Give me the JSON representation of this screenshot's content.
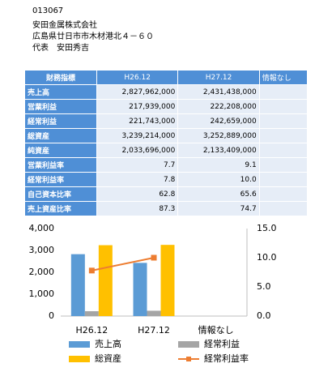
{
  "header": {
    "code": "013067",
    "company": "安田金属株式会社",
    "address": "広島県廿日市市木材港北４－６０",
    "representative": "代表　安田秀吉"
  },
  "table": {
    "columns": [
      "財務指標",
      "H26.12",
      "H27.12",
      "情報なし"
    ],
    "rows": [
      [
        "売上高",
        "2,827,962,000",
        "2,431,438,000",
        ""
      ],
      [
        "営業利益",
        "217,939,000",
        "222,208,000",
        ""
      ],
      [
        "経常利益",
        "221,743,000",
        "242,659,000",
        ""
      ],
      [
        "総資産",
        "3,239,214,000",
        "3,252,889,000",
        ""
      ],
      [
        "純資産",
        "2,033,696,000",
        "2,133,409,000",
        ""
      ],
      [
        "営業利益率",
        "7.7",
        "9.1",
        ""
      ],
      [
        "経常利益率",
        "7.8",
        "10.0",
        ""
      ],
      [
        "自己資本比率",
        "62.8",
        "65.6",
        ""
      ],
      [
        "売上資産比率",
        "87.3",
        "74.7",
        ""
      ]
    ]
  },
  "chart_data": {
    "type": "bar",
    "categories": [
      "H26.12",
      "H27.12",
      "情報なし"
    ],
    "series": [
      {
        "name": "売上高",
        "color": "#5b9bd5",
        "values": [
          2828,
          2431,
          null
        ]
      },
      {
        "name": "経常利益",
        "color": "#a5a5a5",
        "values": [
          222,
          243,
          null
        ]
      },
      {
        "name": "総資産",
        "color": "#ffc000",
        "values": [
          3239,
          3253,
          null
        ]
      },
      {
        "name": "経常利益率",
        "color": "#ed7d31",
        "type": "line",
        "axis": "y2",
        "values": [
          7.8,
          10.0,
          null
        ]
      }
    ],
    "ylim": [
      0,
      4000
    ],
    "yticks": [
      0,
      {
        "value": 1000,
        "label": "1,000"
      },
      {
        "value": 2000,
        "label": "2,000"
      },
      {
        "value": 3000,
        "label": "3,000"
      },
      {
        "value": 4000,
        "label": "4,000"
      }
    ],
    "y2lim": [
      0,
      15
    ],
    "y2ticks": [
      {
        "value": 0,
        "label": "0.0"
      },
      {
        "value": 5,
        "label": "5.0"
      },
      {
        "value": 10,
        "label": "10.0"
      },
      {
        "value": 15,
        "label": "15.0"
      }
    ]
  }
}
